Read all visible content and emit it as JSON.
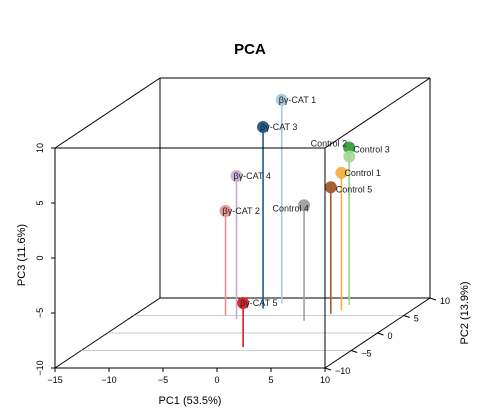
{
  "chart_data": {
    "type": "scatter",
    "subtype": "3d-scatter-with-drop-lines",
    "title": "PCA",
    "xlabel": "PC1 (53.5%)",
    "ylabel": "PC2 (13.9%)",
    "zlabel": "PC3 (11.6%)",
    "xlim": [
      -15,
      10
    ],
    "ylim": [
      -10,
      10
    ],
    "zlim": [
      -10,
      10
    ],
    "x_ticks": [
      "−15",
      "−10",
      "−5",
      "0",
      "5",
      "10"
    ],
    "y_ticks": [
      "−10",
      "−5",
      "0",
      "5",
      "10"
    ],
    "z_ticks": [
      "−10",
      "−5",
      "0",
      "5",
      "10"
    ],
    "grid": "floor",
    "points": [
      {
        "label": "βγ-CAT 1",
        "x": -3.0,
        "y": 8.5,
        "z": 8.5,
        "color": "#a7c9d9"
      },
      {
        "label": "βγ-CAT 3",
        "x": -4.0,
        "y": 7.0,
        "z": 6.5,
        "color": "#1f5a8c"
      },
      {
        "label": "βγ-CAT 4",
        "x": -5.0,
        "y": 4.0,
        "z": 3.0,
        "color": "#c8aed6"
      },
      {
        "label": "βγ-CAT 2",
        "x": -6.5,
        "y": 5.0,
        "z": -0.5,
        "color": "#ea8e8e"
      },
      {
        "label": "βγ-CAT 5",
        "x": -0.5,
        "y": -4.0,
        "z": -6.0,
        "color": "#d9201f"
      },
      {
        "label": "Control 2",
        "x": 3.0,
        "y": 9.0,
        "z": 4.0,
        "color": "#3a9e3a"
      },
      {
        "label": "Control 3",
        "x": 3.5,
        "y": 8.0,
        "z": 3.5,
        "color": "#a8d8a0"
      },
      {
        "label": "Control 1",
        "x": 3.5,
        "y": 6.5,
        "z": 2.5,
        "color": "#f4b044"
      },
      {
        "label": "Control 5",
        "x": 3.0,
        "y": 5.5,
        "z": 1.5,
        "color": "#a05a2c"
      },
      {
        "label": "Control 4",
        "x": 1.5,
        "y": 3.5,
        "z": 0.5,
        "color": "#a0a0a0"
      }
    ]
  }
}
